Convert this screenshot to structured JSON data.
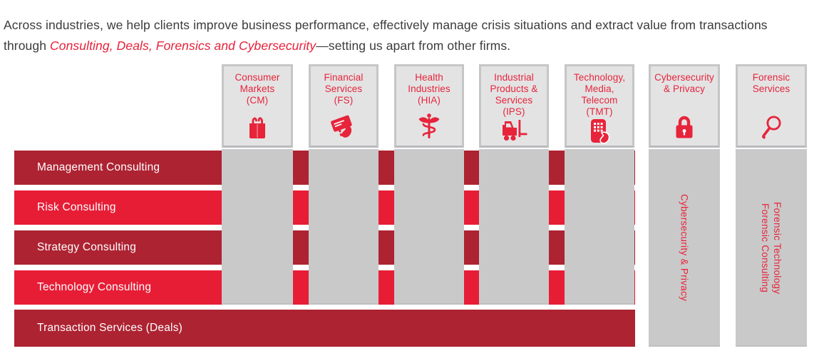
{
  "intro": {
    "part1": "Across industries, we help clients improve business performance, effectively manage crisis situations and extract value from transactions through ",
    "highlight": "Consulting, Deals, Forensics and Cybersecurity",
    "part2": "—setting us apart from other firms."
  },
  "colors": {
    "dark_red": "#ad2332",
    "bright_red": "#e71d36",
    "accent_red": "#e7243a",
    "column_gray": "#c9c9c9",
    "header_gray": "#e3e3e4",
    "header_border": "#c5c6c8",
    "intro_text": "#3b3b3d",
    "row_text": "#ffffff"
  },
  "matrix": {
    "industry_columns": [
      {
        "label": "Consumer Markets (CM)",
        "lines": [
          "Consumer",
          "Markets",
          "(CM)"
        ],
        "icon": "shopping-bag-icon"
      },
      {
        "label": "Financial Services (FS)",
        "lines": [
          "Financial",
          "Services",
          "(FS)"
        ],
        "icon": "payment-card-icon"
      },
      {
        "label": "Health Industries (HIA)",
        "lines": [
          "Health",
          "Industries",
          "(HIA)"
        ],
        "icon": "caduceus-icon"
      },
      {
        "label": "Industrial Products & Services (IPS)",
        "lines": [
          "Industrial",
          "Products &",
          "Services",
          "(IPS)"
        ],
        "icon": "forklift-icon"
      },
      {
        "label": "Technology, Media, Telecom (TMT)",
        "lines": [
          "Technology,",
          "Media,",
          "Telecom",
          "(TMT)"
        ],
        "icon": "smartphone-tap-icon"
      }
    ],
    "service_columns": [
      {
        "label": "Cybersecurity & Privacy",
        "lines": [
          "Cybersecurity",
          "& Privacy"
        ],
        "icon": "padlock-icon",
        "vertical_labels": [
          "Cybersecurity & Privacy"
        ]
      },
      {
        "label": "Forensic Services",
        "lines": [
          "Forensic",
          "Services"
        ],
        "icon": "magnifying-glass-icon",
        "vertical_labels": [
          "Forensic Consulting",
          "Forensic Technology"
        ]
      }
    ],
    "rows": [
      {
        "label": "Management Consulting",
        "tone": "dark"
      },
      {
        "label": "Risk Consulting",
        "tone": "bright"
      },
      {
        "label": "Strategy Consulting",
        "tone": "dark"
      },
      {
        "label": "Technology Consulting",
        "tone": "bright"
      },
      {
        "label": "Transaction Services (Deals)",
        "tone": "dark"
      }
    ]
  }
}
